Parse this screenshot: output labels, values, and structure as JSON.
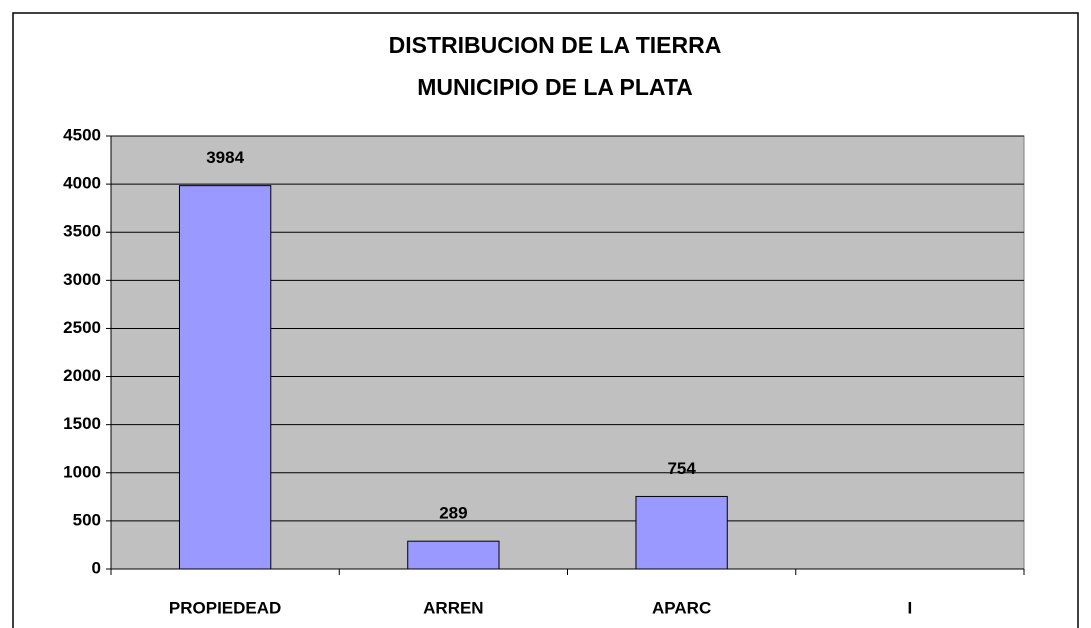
{
  "chart_data": {
    "type": "bar",
    "title": [
      "DISTRIBUCION DE LA TIERRA",
      "MUNICIPIO DE LA PLATA"
    ],
    "categories": [
      "PROPIEDEAD",
      "ARREN",
      "APARC",
      "I"
    ],
    "values": [
      3984,
      289,
      754,
      null
    ],
    "color": "#9999ff",
    "ylim": [
      0,
      4500
    ],
    "yticks": [
      0,
      500,
      1000,
      1500,
      2000,
      2500,
      3000,
      3500,
      4000,
      4500
    ],
    "grid": true
  }
}
